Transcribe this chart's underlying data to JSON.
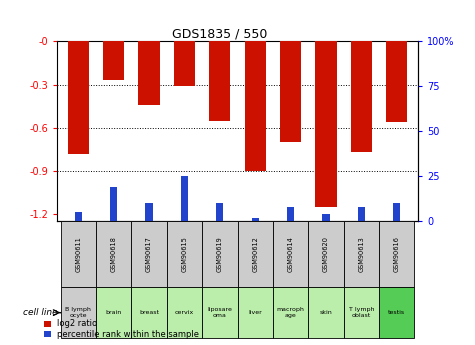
{
  "title": "GDS1835 / 550",
  "samples": [
    "GSM90611",
    "GSM90618",
    "GSM90617",
    "GSM90615",
    "GSM90619",
    "GSM90612",
    "GSM90614",
    "GSM90620",
    "GSM90613",
    "GSM90616"
  ],
  "cell_lines": [
    "B lymph\nocyte",
    "brain",
    "breast",
    "cervix",
    "liposare\noma",
    "liver",
    "macroph\nage",
    "skin",
    "T lymph\noblast",
    "testis"
  ],
  "log2_ratio": [
    -0.78,
    -0.265,
    -0.445,
    -0.31,
    -0.555,
    -0.9,
    -0.7,
    -1.15,
    -0.77,
    -0.56
  ],
  "percentile_rank": [
    5,
    19,
    10,
    25,
    10,
    2,
    8,
    4,
    8,
    10
  ],
  "ylim_left": [
    -1.25,
    0.0
  ],
  "ylim_right": [
    0,
    100
  ],
  "left_yticks": [
    0.0,
    -0.3,
    -0.6,
    -0.9,
    -1.2
  ],
  "right_yticks": [
    0,
    25,
    50,
    75,
    100
  ],
  "left_tick_labels": [
    "-0",
    "-0.3",
    "-0.6",
    "-0.9",
    "-1.2"
  ],
  "right_tick_labels": [
    "0",
    "25",
    "50",
    "75",
    "100%"
  ],
  "bar_color": "#cc1100",
  "blue_color": "#2244cc",
  "cell_line_bg_colors": [
    "#cccccc",
    "#bbeeaa",
    "#bbeeaa",
    "#bbeeaa",
    "#bbeeaa",
    "#bbeeaa",
    "#bbeeaa",
    "#bbeeaa",
    "#bbeeaa",
    "#55cc55"
  ],
  "gsm_bg_color": "#cccccc",
  "legend_red": "log2 ratio",
  "legend_blue": "percentile rank within the sample",
  "cell_line_label": "cell line",
  "fig_bg": "#ffffff",
  "bar_width": 0.6,
  "blue_bar_width": 0.2
}
